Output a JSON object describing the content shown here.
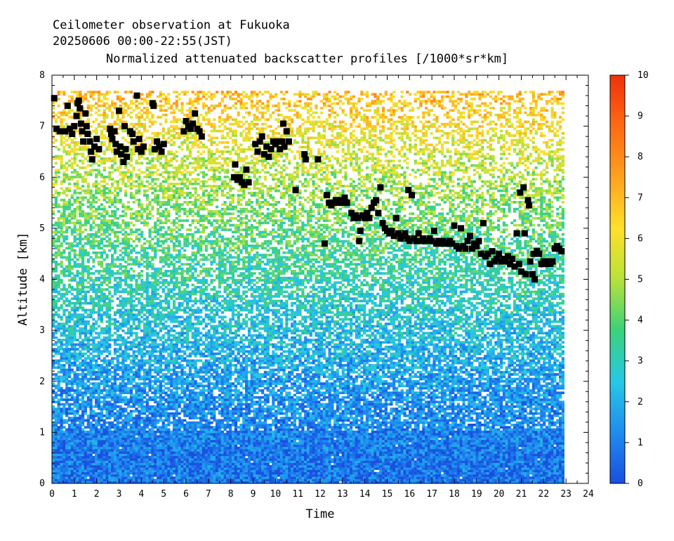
{
  "header": {
    "line1": "Ceilometer observation at Fukuoka",
    "line2": "20250606  00:00-22:55(JST)",
    "line3": "Normalized attenuated backscatter profiles [/1000*sr*km]"
  },
  "chart_data": {
    "type": "heatmap",
    "title": "Normalized attenuated backscatter profiles [/1000*sr*km]",
    "xlabel": "Time",
    "ylabel": "Altitude [km]",
    "xlim": [
      0,
      24
    ],
    "ylim": [
      0,
      8
    ],
    "x_ticks": [
      "0",
      "1",
      "2",
      "3",
      "4",
      "5",
      "6",
      "7",
      "8",
      "9",
      "10",
      "11",
      "12",
      "13",
      "14",
      "15",
      "16",
      "17",
      "18",
      "19",
      "20",
      "21",
      "22",
      "23",
      "24"
    ],
    "y_ticks": [
      "0",
      "1",
      "2",
      "3",
      "4",
      "5",
      "6",
      "7",
      "8"
    ],
    "data_extent": {
      "time_start": 0,
      "time_end": 22.92,
      "alt_top": 7.67
    },
    "colorbar": {
      "range": [
        0,
        10
      ],
      "ticks": [
        "0",
        "1",
        "2",
        "3",
        "4",
        "5",
        "6",
        "7",
        "8",
        "9",
        "10"
      ],
      "colors": [
        "#1a4fe0",
        "#1e8cf0",
        "#27c8e6",
        "#3bd27a",
        "#b7e23a",
        "#ffe02a",
        "#ffa21e",
        "#ff6a14",
        "#f0300c"
      ]
    },
    "background_profile": [
      {
        "alt": 0.0,
        "value": 0.8
      },
      {
        "alt": 0.5,
        "value": 0.8
      },
      {
        "alt": 1.0,
        "value": 1.1
      },
      {
        "alt": 2.0,
        "value": 1.6
      },
      {
        "alt": 3.0,
        "value": 2.4
      },
      {
        "alt": 4.0,
        "value": 3.2
      },
      {
        "alt": 5.0,
        "value": 4.0
      },
      {
        "alt": 6.0,
        "value": 5.0
      },
      {
        "alt": 7.0,
        "value": 6.2
      },
      {
        "alt": 7.67,
        "value": 7.0
      }
    ],
    "cloud_base_points": [
      [
        0.1,
        7.55
      ],
      [
        0.2,
        6.95
      ],
      [
        0.35,
        6.9
      ],
      [
        0.6,
        6.9
      ],
      [
        0.7,
        7.4
      ],
      [
        0.8,
        6.95
      ],
      [
        0.9,
        6.85
      ],
      [
        1.0,
        7.0
      ],
      [
        1.1,
        7.2
      ],
      [
        1.15,
        7.45
      ],
      [
        1.2,
        7.5
      ],
      [
        1.25,
        7.35
      ],
      [
        1.3,
        7.05
      ],
      [
        1.35,
        6.9
      ],
      [
        1.4,
        6.7
      ],
      [
        1.5,
        7.25
      ],
      [
        1.55,
        7.0
      ],
      [
        1.6,
        6.85
      ],
      [
        1.7,
        6.7
      ],
      [
        1.75,
        6.5
      ],
      [
        1.8,
        6.35
      ],
      [
        1.9,
        6.6
      ],
      [
        2.0,
        6.75
      ],
      [
        2.1,
        6.55
      ],
      [
        2.6,
        6.95
      ],
      [
        2.65,
        6.85
      ],
      [
        2.7,
        6.75
      ],
      [
        2.8,
        6.9
      ],
      [
        2.85,
        6.65
      ],
      [
        2.9,
        6.5
      ],
      [
        3.0,
        7.3
      ],
      [
        3.05,
        6.6
      ],
      [
        3.1,
        6.45
      ],
      [
        3.2,
        6.3
      ],
      [
        3.25,
        7.0
      ],
      [
        3.3,
        6.55
      ],
      [
        3.35,
        6.4
      ],
      [
        3.5,
        6.9
      ],
      [
        3.6,
        6.85
      ],
      [
        3.65,
        6.7
      ],
      [
        3.8,
        7.6
      ],
      [
        3.85,
        6.55
      ],
      [
        3.9,
        6.75
      ],
      [
        4.0,
        6.5
      ],
      [
        4.1,
        6.6
      ],
      [
        4.5,
        7.45
      ],
      [
        4.55,
        7.4
      ],
      [
        4.6,
        6.55
      ],
      [
        4.7,
        6.7
      ],
      [
        4.8,
        6.6
      ],
      [
        4.9,
        6.5
      ],
      [
        5.0,
        6.65
      ],
      [
        5.9,
        6.9
      ],
      [
        6.0,
        7.1
      ],
      [
        6.1,
        7.0
      ],
      [
        6.2,
        6.95
      ],
      [
        6.3,
        7.05
      ],
      [
        6.4,
        7.25
      ],
      [
        6.5,
        6.95
      ],
      [
        6.6,
        6.9
      ],
      [
        6.7,
        6.8
      ],
      [
        8.15,
        6.0
      ],
      [
        8.2,
        6.25
      ],
      [
        8.3,
        5.95
      ],
      [
        8.4,
        6.0
      ],
      [
        8.5,
        5.9
      ],
      [
        8.6,
        5.85
      ],
      [
        8.7,
        6.15
      ],
      [
        8.8,
        5.9
      ],
      [
        9.1,
        6.65
      ],
      [
        9.2,
        6.5
      ],
      [
        9.3,
        6.7
      ],
      [
        9.4,
        6.8
      ],
      [
        9.5,
        6.45
      ],
      [
        9.6,
        6.6
      ],
      [
        9.7,
        6.4
      ],
      [
        9.8,
        6.55
      ],
      [
        9.9,
        6.7
      ],
      [
        10.0,
        6.65
      ],
      [
        10.1,
        6.7
      ],
      [
        10.2,
        6.55
      ],
      [
        10.3,
        6.7
      ],
      [
        10.35,
        7.05
      ],
      [
        10.4,
        6.6
      ],
      [
        10.5,
        6.9
      ],
      [
        10.6,
        6.7
      ],
      [
        10.9,
        5.75
      ],
      [
        11.3,
        6.45
      ],
      [
        11.35,
        6.35
      ],
      [
        11.9,
        6.35
      ],
      [
        12.2,
        4.7
      ],
      [
        12.3,
        5.65
      ],
      [
        12.4,
        5.5
      ],
      [
        12.5,
        5.45
      ],
      [
        12.6,
        5.5
      ],
      [
        12.7,
        5.55
      ],
      [
        12.8,
        5.5
      ],
      [
        12.9,
        5.55
      ],
      [
        13.0,
        5.5
      ],
      [
        13.1,
        5.6
      ],
      [
        13.2,
        5.5
      ],
      [
        13.4,
        5.3
      ],
      [
        13.5,
        5.2
      ],
      [
        13.6,
        5.25
      ],
      [
        13.7,
        5.2
      ],
      [
        13.75,
        4.75
      ],
      [
        13.8,
        4.95
      ],
      [
        13.9,
        5.25
      ],
      [
        14.0,
        5.2
      ],
      [
        14.1,
        5.3
      ],
      [
        14.2,
        5.2
      ],
      [
        14.3,
        5.4
      ],
      [
        14.4,
        5.5
      ],
      [
        14.5,
        5.55
      ],
      [
        14.6,
        5.3
      ],
      [
        14.7,
        5.8
      ],
      [
        14.8,
        5.1
      ],
      [
        14.9,
        5.0
      ],
      [
        15.0,
        4.95
      ],
      [
        15.1,
        4.9
      ],
      [
        15.2,
        4.95
      ],
      [
        15.3,
        4.85
      ],
      [
        15.4,
        5.2
      ],
      [
        15.5,
        4.9
      ],
      [
        15.6,
        4.8
      ],
      [
        15.7,
        4.85
      ],
      [
        15.8,
        4.9
      ],
      [
        15.9,
        4.8
      ],
      [
        15.95,
        5.75
      ],
      [
        16.0,
        4.75
      ],
      [
        16.1,
        5.65
      ],
      [
        16.2,
        4.8
      ],
      [
        16.3,
        4.75
      ],
      [
        16.4,
        4.9
      ],
      [
        16.5,
        4.75
      ],
      [
        16.6,
        4.8
      ],
      [
        16.7,
        4.75
      ],
      [
        16.8,
        4.75
      ],
      [
        16.9,
        4.8
      ],
      [
        17.0,
        4.75
      ],
      [
        17.1,
        4.95
      ],
      [
        17.2,
        4.7
      ],
      [
        17.3,
        4.75
      ],
      [
        17.4,
        4.7
      ],
      [
        17.5,
        4.75
      ],
      [
        17.6,
        4.7
      ],
      [
        17.7,
        4.7
      ],
      [
        17.8,
        4.75
      ],
      [
        17.9,
        4.7
      ],
      [
        18.0,
        5.05
      ],
      [
        18.1,
        4.65
      ],
      [
        18.2,
        4.6
      ],
      [
        18.3,
        5.0
      ],
      [
        18.4,
        4.65
      ],
      [
        18.5,
        4.6
      ],
      [
        18.6,
        4.75
      ],
      [
        18.7,
        4.85
      ],
      [
        18.8,
        4.6
      ],
      [
        18.9,
        4.7
      ],
      [
        19.0,
        4.65
      ],
      [
        19.1,
        4.75
      ],
      [
        19.2,
        4.5
      ],
      [
        19.3,
        5.1
      ],
      [
        19.4,
        4.45
      ],
      [
        19.5,
        4.5
      ],
      [
        19.6,
        4.3
      ],
      [
        19.7,
        4.55
      ],
      [
        19.8,
        4.35
      ],
      [
        19.9,
        4.4
      ],
      [
        20.0,
        4.5
      ],
      [
        20.1,
        4.35
      ],
      [
        20.2,
        4.4
      ],
      [
        20.3,
        4.35
      ],
      [
        20.4,
        4.45
      ],
      [
        20.5,
        4.3
      ],
      [
        20.6,
        4.4
      ],
      [
        20.7,
        4.25
      ],
      [
        20.8,
        4.9
      ],
      [
        20.9,
        4.3
      ],
      [
        20.95,
        5.7
      ],
      [
        21.0,
        4.15
      ],
      [
        21.1,
        5.8
      ],
      [
        21.15,
        4.9
      ],
      [
        21.2,
        4.1
      ],
      [
        21.3,
        5.55
      ],
      [
        21.35,
        5.45
      ],
      [
        21.4,
        4.35
      ],
      [
        21.5,
        4.1
      ],
      [
        21.55,
        4.5
      ],
      [
        21.6,
        4.0
      ],
      [
        21.7,
        4.55
      ],
      [
        21.8,
        4.5
      ],
      [
        21.9,
        4.3
      ],
      [
        22.0,
        4.35
      ],
      [
        22.1,
        4.3
      ],
      [
        22.2,
        4.35
      ],
      [
        22.3,
        4.3
      ],
      [
        22.4,
        4.35
      ],
      [
        22.5,
        4.6
      ],
      [
        22.6,
        4.65
      ],
      [
        22.7,
        4.6
      ],
      [
        22.8,
        4.55
      ]
    ]
  }
}
